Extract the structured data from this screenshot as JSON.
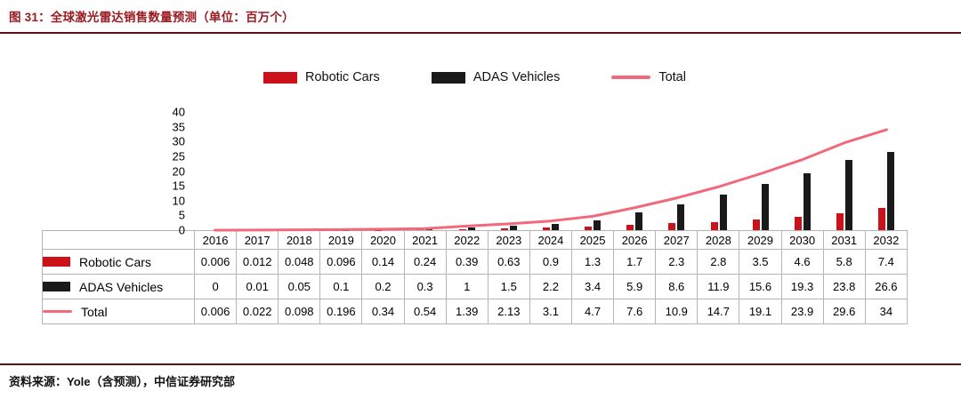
{
  "header": {
    "title": "图 31：全球激光雷达销售数量预测（单位：百万个）"
  },
  "chart_data": {
    "type": "bar+line",
    "title": "图 31：全球激光雷达销售数量预测（单位：百万个）",
    "categories": [
      "2016",
      "2017",
      "2018",
      "2019",
      "2020",
      "2021",
      "2022",
      "2023",
      "2024",
      "2025",
      "2026",
      "2027",
      "2028",
      "2029",
      "2030",
      "2031",
      "2032"
    ],
    "series": [
      {
        "name": "Robotic Cars",
        "type": "bar",
        "color": "#cd111b",
        "values": [
          0.006,
          0.012,
          0.048,
          0.096,
          0.14,
          0.24,
          0.39,
          0.63,
          0.9,
          1.3,
          1.7,
          2.3,
          2.8,
          3.5,
          4.6,
          5.8,
          7.4
        ]
      },
      {
        "name": "ADAS Vehicles",
        "type": "bar",
        "color": "#1a1a1a",
        "values": [
          0,
          0.01,
          0.05,
          0.1,
          0.2,
          0.3,
          1,
          1.5,
          2.2,
          3.4,
          5.9,
          8.6,
          11.9,
          15.6,
          19.3,
          23.8,
          26.6
        ]
      },
      {
        "name": "Total",
        "type": "line",
        "color": "#f2697a",
        "values": [
          0.006,
          0.022,
          0.098,
          0.196,
          0.34,
          0.54,
          1.39,
          2.13,
          3.1,
          4.7,
          7.6,
          10.9,
          14.7,
          19.1,
          23.9,
          29.6,
          34
        ]
      }
    ],
    "ylim": [
      0,
      40
    ],
    "yticks": [
      0,
      5,
      10,
      15,
      20,
      25,
      30,
      35,
      40
    ],
    "xlabel": "",
    "ylabel": "",
    "grid": false,
    "legend_position": "top"
  },
  "footer": {
    "source": "资料来源：Yole（含预测），中信证券研究部"
  },
  "colors": {
    "rule": "#5e1212",
    "title_text": "#9a1a20",
    "table_border": "#b5b5b5"
  }
}
